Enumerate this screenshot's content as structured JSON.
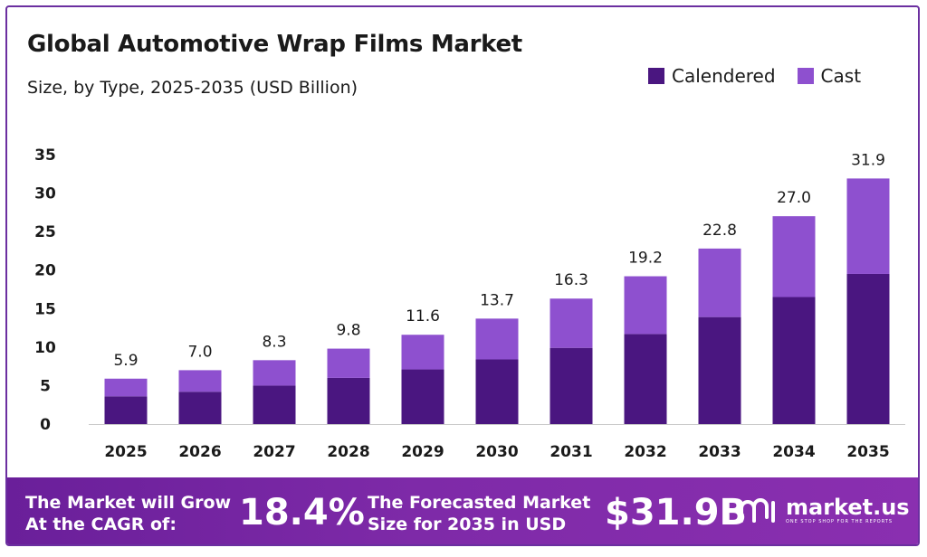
{
  "header": {
    "title": "Global Automotive Wrap Films Market",
    "subtitle": "Size, by Type, 2025-2035 (USD Billion)"
  },
  "legend": {
    "items": [
      {
        "label": "Calendered",
        "color": "#4a1680"
      },
      {
        "label": "Cast",
        "color": "#8e50cf"
      }
    ]
  },
  "chart_data": {
    "type": "bar",
    "stacked": true,
    "categories": [
      "2025",
      "2026",
      "2027",
      "2028",
      "2029",
      "2030",
      "2031",
      "2032",
      "2033",
      "2034",
      "2035"
    ],
    "series": [
      {
        "name": "Calendered",
        "color": "#4a1680",
        "values": [
          3.6,
          4.2,
          5.0,
          6.0,
          7.1,
          8.4,
          9.9,
          11.7,
          13.9,
          16.5,
          19.5
        ]
      },
      {
        "name": "Cast",
        "color": "#8e50cf",
        "values": [
          2.3,
          2.8,
          3.3,
          3.8,
          4.5,
          5.3,
          6.4,
          7.5,
          8.9,
          10.5,
          12.4
        ]
      }
    ],
    "totals": [
      "5.9",
      "7.0",
      "8.3",
      "9.8",
      "11.6",
      "13.7",
      "16.3",
      "19.2",
      "22.8",
      "27.0",
      "31.9"
    ],
    "yticks": [
      "0",
      "5",
      "10",
      "15",
      "20",
      "25",
      "30",
      "35"
    ],
    "ylim": [
      0,
      35
    ],
    "xlabel": "",
    "ylabel": "",
    "grid": false,
    "legend_position": "top-right"
  },
  "footer": {
    "cagr_label_line1": "The Market will Grow",
    "cagr_label_line2": "At the CAGR of:",
    "cagr_value": "18.4%",
    "forecast_label_line1": "The Forecasted Market",
    "forecast_label_line2": "Size for 2035 in USD",
    "forecast_value": "$31.9B",
    "brand_name": "market.us",
    "brand_tagline": "ONE STOP SHOP FOR THE REPORTS"
  }
}
